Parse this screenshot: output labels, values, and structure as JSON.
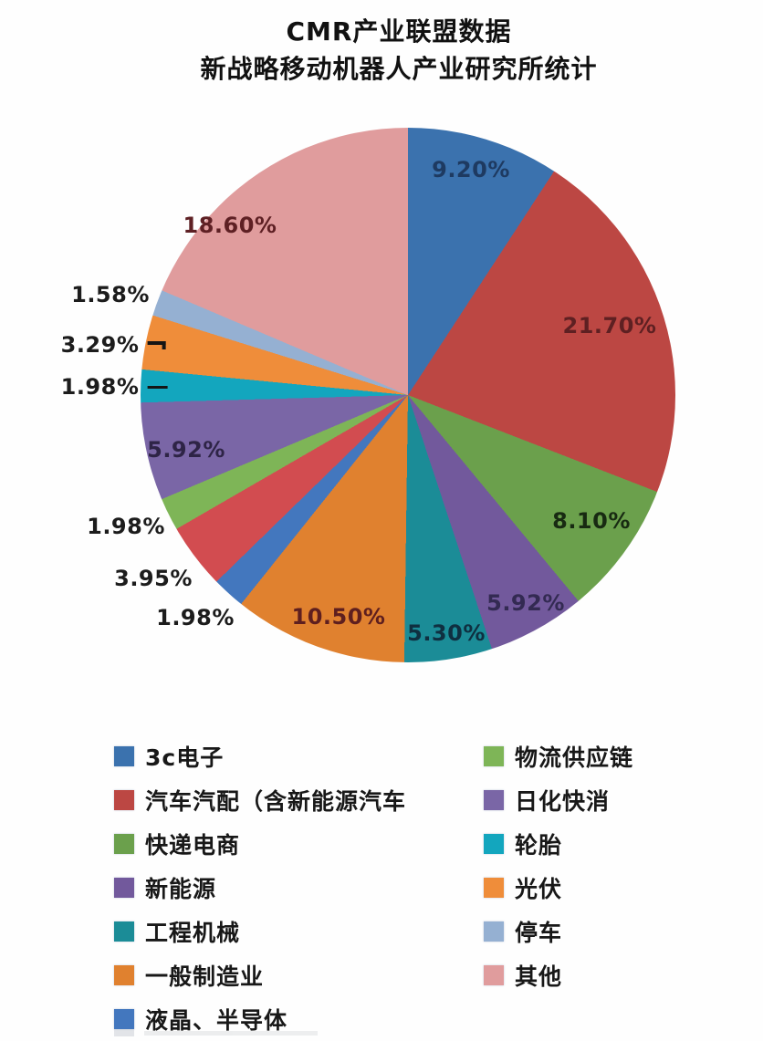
{
  "title": {
    "line1": "CMR产业联盟数据",
    "line2": "新战略移动机器人产业研究所统计"
  },
  "chart_data": {
    "type": "pie",
    "title": "CMR产业联盟数据 新战略移动机器人产业研究所统计",
    "start_angle_deg": 0,
    "direction": "clockwise",
    "total_percent": 100,
    "slices": [
      {
        "name": "3c电子",
        "value": 9.2,
        "label": "9.20%",
        "color": "#3b72ae",
        "label_color": "#1e3a61",
        "label_pos": [
          516,
          186
        ]
      },
      {
        "name": "汽车汽配（含新能源汽车",
        "value": 21.7,
        "label": "21.70%",
        "color": "#bc4743",
        "label_color": "#5e2022",
        "label_pos": [
          668,
          357
        ]
      },
      {
        "name": "快递电商",
        "value": 8.1,
        "label": "8.10%",
        "color": "#6ba04c",
        "label_color": "#182a12",
        "label_pos": [
          648,
          571
        ]
      },
      {
        "name": "新能源",
        "value": 5.92,
        "label": "5.92%",
        "color": "#72599c",
        "label_color": "#332a52",
        "label_pos": [
          576,
          661
        ]
      },
      {
        "name": "工程机械",
        "value": 5.3,
        "label": "5.30%",
        "color": "#1b8c97",
        "label_color": "#0f2f40",
        "label_pos": [
          489,
          694
        ]
      },
      {
        "name": "一般制造业",
        "value": 10.5,
        "label": "10.50%",
        "color": "#e0812f",
        "label_color": "#5e1f1f",
        "label_pos": [
          371,
          676
        ]
      },
      {
        "name": "液晶、半导体",
        "value": 1.98,
        "label": "1.98%",
        "color": "#4377be",
        "label_color": "#1c1c1c",
        "label_pos": [
          214,
          677
        ]
      },
      {
        "name": "",
        "value": 3.95,
        "label": "3.95%",
        "color": "#d24c50",
        "label_color": "#1c1c1c",
        "label_pos": [
          168,
          634
        ]
      },
      {
        "name": "物流供应链",
        "value": 1.98,
        "label": "1.98%",
        "color": "#7eb557",
        "label_color": "#1c1c1c",
        "label_pos": [
          138,
          577
        ]
      },
      {
        "name": "日化快消",
        "value": 5.92,
        "label": "5.92%",
        "color": "#7a66a6",
        "label_color": "#2e2446",
        "label_pos": [
          204,
          493
        ]
      },
      {
        "name": "轮胎",
        "value": 1.98,
        "label": "1.98%",
        "color": "#13a6be",
        "label_color": "#1c1c1c",
        "label_pos": [
          125,
          424
        ],
        "leader": "dash"
      },
      {
        "name": "光伏",
        "value": 3.29,
        "label": "3.29%",
        "color": "#ef8d3a",
        "label_color": "#1c1c1c",
        "label_pos": [
          124,
          378
        ],
        "leader": "hook"
      },
      {
        "name": "停车",
        "value": 1.58,
        "label": "1.58%",
        "color": "#95b0d2",
        "label_color": "#1c1c1c",
        "label_pos": [
          121,
          323
        ]
      },
      {
        "name": "其他",
        "value": 18.6,
        "label": "18.60%",
        "color": "#e09c9d",
        "label_color": "#5e2024",
        "label_pos": [
          252,
          247
        ]
      }
    ],
    "legend": {
      "position": "bottom",
      "columns": [
        [
          "3c电子",
          "汽车汽配（含新能源汽车",
          "快递电商",
          "新能源",
          "工程机械",
          "一般制造业",
          "液晶、半导体"
        ],
        [
          "物流供应链",
          "日化快消",
          "轮胎",
          "光伏",
          "停车",
          "其他"
        ]
      ]
    }
  }
}
